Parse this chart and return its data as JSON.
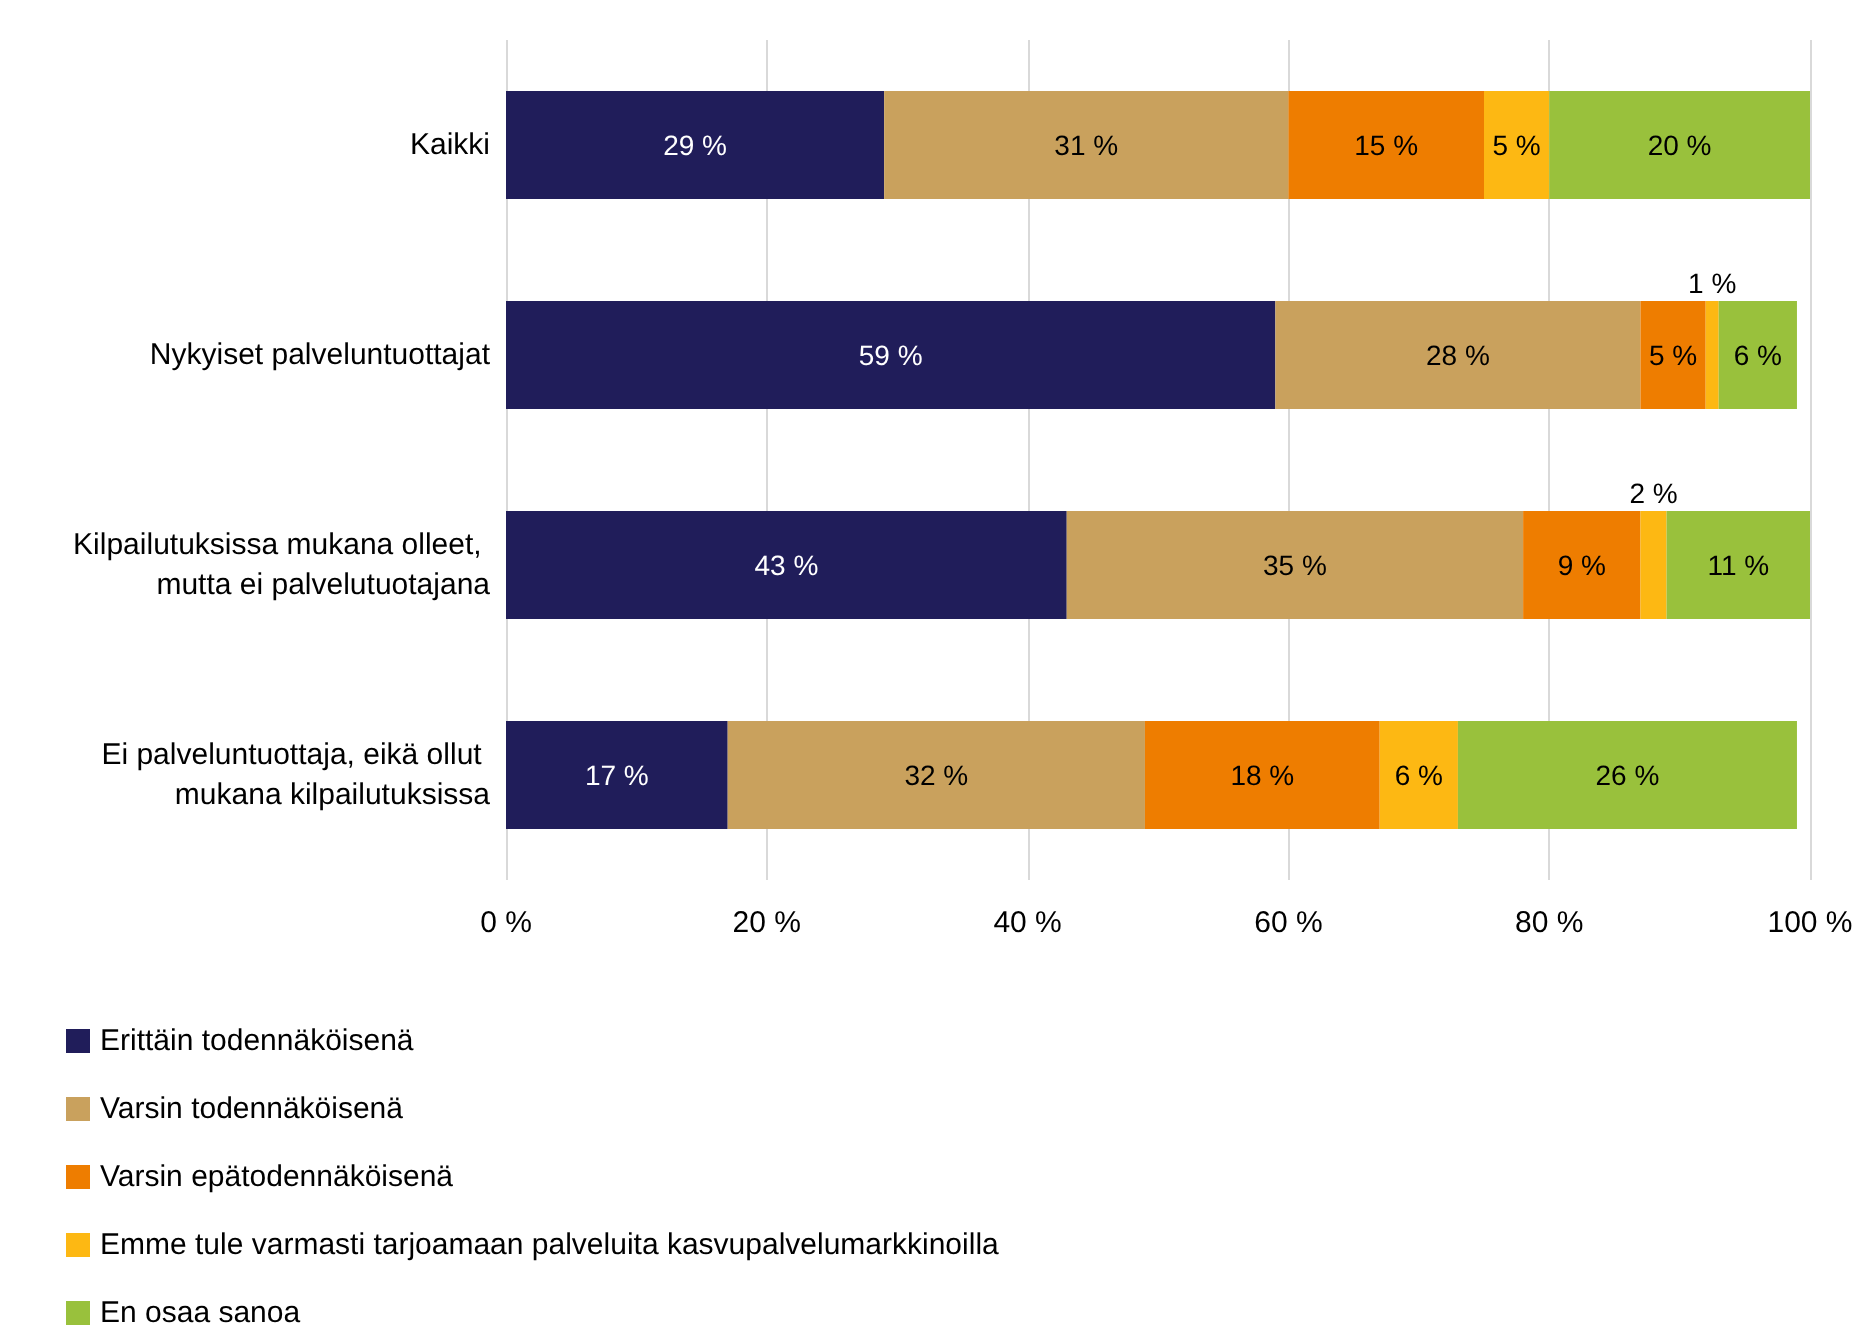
{
  "chart_data": {
    "type": "bar",
    "orientation": "horizontal",
    "stacked": true,
    "categories": [
      "Kaikki",
      "Nykyiset palveluntuottajat",
      "Kilpailutuksissa mukana olleet, mutta ei palvelutuotajana",
      "Ei palveluntuottaja, eikä ollut mukana kilpailutuksissa"
    ],
    "series": [
      {
        "name": "Erittäin todennäköisenä",
        "color": "#201d5a",
        "values": [
          29,
          59,
          43,
          17
        ],
        "value_labels": [
          "29 %",
          "59 %",
          "43 %",
          "17 %"
        ]
      },
      {
        "name": "Varsin todennäköisenä",
        "color": "#c9a15d",
        "values": [
          31,
          28,
          35,
          32
        ],
        "value_labels": [
          "31 %",
          "28 %",
          "35 %",
          "32 %"
        ]
      },
      {
        "name": "Varsin epätodennäköisenä",
        "color": "#ee7d00",
        "values": [
          15,
          5,
          9,
          18
        ],
        "value_labels": [
          "15 %",
          "5 %",
          "9 %",
          "18 %"
        ]
      },
      {
        "name": "Emme tule varmasti tarjoamaan palveluita kasvupalvelumarkkinoilla",
        "color": "#fdb813",
        "values": [
          5,
          1,
          2,
          6
        ],
        "value_labels": [
          "5 %",
          "1 %",
          "2 %",
          "6 %"
        ]
      },
      {
        "name": "En osaa sanoa",
        "color": "#99c13c",
        "values": [
          20,
          6,
          11,
          26
        ],
        "value_labels": [
          "20 %",
          "6 %",
          "11 %",
          "26 %"
        ]
      }
    ],
    "xlim": [
      0,
      100
    ],
    "xticks": [
      {
        "value": 0,
        "label": "0 %"
      },
      {
        "value": 20,
        "label": "20 %"
      },
      {
        "value": 40,
        "label": "40 %"
      },
      {
        "value": 60,
        "label": "60 %"
      },
      {
        "value": 80,
        "label": "80 %"
      },
      {
        "value": 100,
        "label": "100 %"
      }
    ],
    "grid": "x",
    "legend": "bottom"
  }
}
